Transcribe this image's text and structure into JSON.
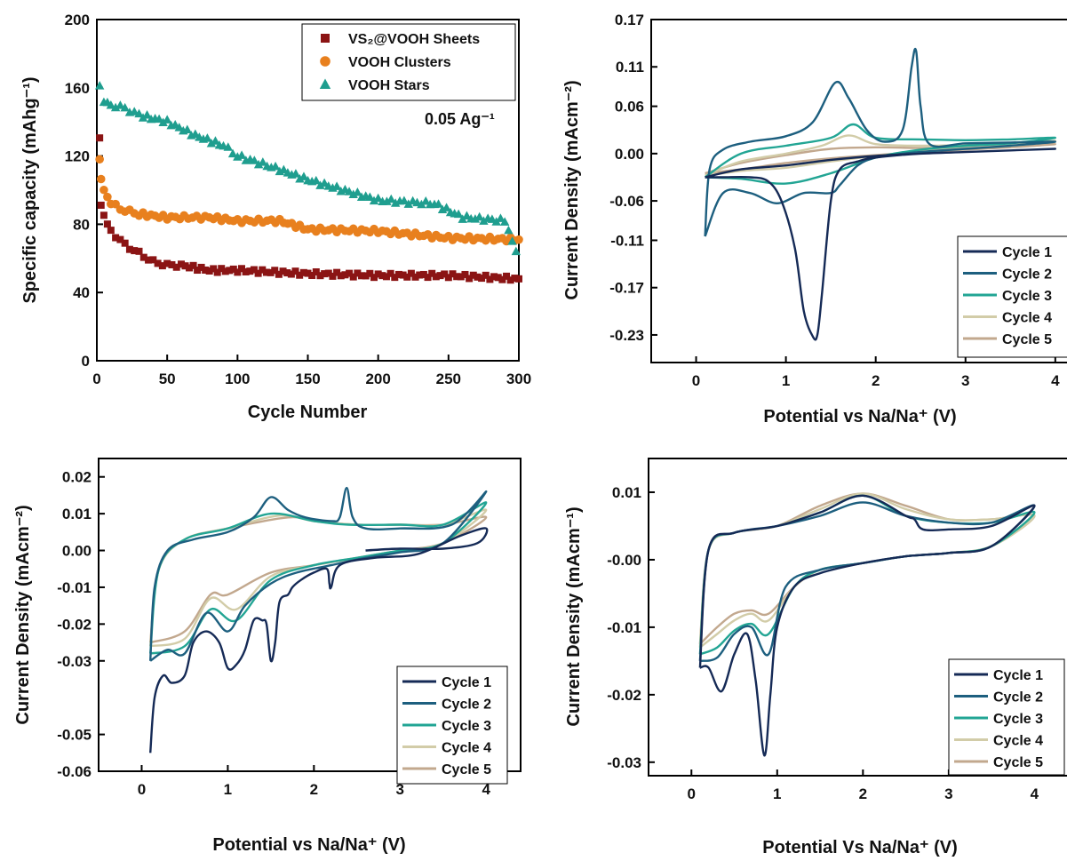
{
  "colors": {
    "sheets": "#8b1414",
    "clusters": "#e8801e",
    "stars": "#1f9e8f",
    "cycle1": "#152a56",
    "cycle2": "#1d5f7f",
    "cycle3": "#22a594",
    "cycle4": "#d2cca8",
    "cycle5": "#c2a88e"
  },
  "chart_data": [
    {
      "type": "scatter",
      "xlabel": "Cycle Number",
      "ylabel": "Specific capacity (mAhg⁻¹)",
      "xlim": [
        0,
        300
      ],
      "ylim": [
        0,
        200
      ],
      "xticks": [
        0,
        50,
        100,
        150,
        200,
        250,
        300
      ],
      "yticks": [
        0,
        40,
        80,
        120,
        160,
        200
      ],
      "annotation": "0.05 Ag⁻¹",
      "legend_position": "top-right",
      "series": [
        {
          "name": "VS₂@VOOH Sheets",
          "marker": "square",
          "x": [
            2,
            3,
            5,
            10,
            20,
            30,
            40,
            50,
            60,
            80,
            100,
            150,
            200,
            250,
            300
          ],
          "y": [
            130,
            92,
            85,
            76,
            68,
            63,
            58,
            56,
            56,
            53,
            53,
            51,
            50,
            50,
            48
          ]
        },
        {
          "name": "VOOH Clusters",
          "marker": "circle",
          "x": [
            2,
            3,
            5,
            10,
            20,
            30,
            50,
            80,
            100,
            130,
            150,
            200,
            250,
            300
          ],
          "y": [
            119,
            106,
            100,
            92,
            88,
            86,
            84,
            84,
            82,
            82,
            77,
            76,
            72,
            71
          ]
        },
        {
          "name": "VOOH Stars",
          "marker": "triangle",
          "x": [
            2,
            5,
            10,
            20,
            30,
            50,
            70,
            90,
            100,
            130,
            150,
            200,
            240,
            260,
            290,
            298
          ],
          "y": [
            160,
            152,
            150,
            148,
            144,
            140,
            132,
            126,
            120,
            112,
            106,
            94,
            92,
            84,
            82,
            64
          ]
        }
      ]
    },
    {
      "type": "line",
      "xlabel": "Potential vs Na/Na⁺ (V)",
      "ylabel": "Current Density (mAcm⁻²)",
      "xlim": [
        -0.5,
        4.15
      ],
      "ylim": [
        -0.265,
        0.17
      ],
      "xticks": [
        0,
        1,
        2,
        3,
        4
      ],
      "yticks": [
        0.17,
        0.11,
        0.06,
        0.0,
        -0.06,
        -0.11,
        -0.17,
        -0.23
      ],
      "ytick_labels": [
        "0.17",
        "0.11",
        "0.06",
        "0.00",
        "-0.06",
        "-0.11",
        "-0.17",
        "-0.23"
      ],
      "legend_position": "bottom-right",
      "series": [
        {
          "name": "Cycle 1",
          "x": [
            0.1,
            0.3,
            0.6,
            0.8,
            0.95,
            1.1,
            1.2,
            1.3,
            1.35,
            1.4,
            1.5,
            1.6,
            1.8,
            2.0,
            2.5,
            3.0,
            3.5,
            4.0,
            3.5,
            3.0,
            2.5,
            2.0,
            1.5,
            1.0,
            0.5,
            0.1
          ],
          "y": [
            -0.03,
            -0.03,
            -0.03,
            -0.035,
            -0.06,
            -0.12,
            -0.2,
            -0.232,
            -0.23,
            -0.18,
            -0.06,
            -0.02,
            -0.01,
            -0.005,
            0.0,
            0.002,
            0.004,
            0.006,
            0.004,
            0.002,
            0.0,
            -0.003,
            -0.008,
            -0.015,
            -0.02,
            -0.03
          ]
        },
        {
          "name": "Cycle 2",
          "x": [
            0.1,
            0.3,
            0.6,
            0.9,
            1.2,
            1.5,
            1.6,
            1.8,
            2.0,
            2.3,
            2.6,
            3.0,
            3.5,
            4.0,
            3.5,
            3.0,
            2.6,
            2.5,
            2.45,
            2.4,
            2.3,
            2.1,
            1.9,
            1.7,
            1.55,
            1.3,
            1.0,
            0.6,
            0.3,
            0.15,
            0.1
          ],
          "y": [
            -0.105,
            -0.05,
            -0.05,
            -0.063,
            -0.05,
            -0.05,
            -0.04,
            -0.015,
            -0.005,
            0.0,
            0.003,
            0.006,
            0.01,
            0.015,
            0.014,
            0.013,
            0.012,
            0.06,
            0.13,
            0.11,
            0.03,
            0.015,
            0.03,
            0.07,
            0.09,
            0.04,
            0.022,
            0.015,
            0.005,
            -0.02,
            -0.105
          ]
        },
        {
          "name": "Cycle 3",
          "x": [
            0.1,
            0.5,
            1.0,
            1.5,
            2.0,
            2.5,
            3.0,
            3.5,
            4.0,
            3.5,
            3.0,
            2.5,
            2.0,
            1.75,
            1.5,
            1.0,
            0.5,
            0.1
          ],
          "y": [
            -0.03,
            -0.032,
            -0.038,
            -0.025,
            -0.005,
            0.005,
            0.01,
            0.013,
            0.02,
            0.018,
            0.017,
            0.018,
            0.02,
            0.037,
            0.02,
            0.01,
            0.0,
            -0.03
          ]
        },
        {
          "name": "Cycle 4",
          "x": [
            0.1,
            0.5,
            1.0,
            1.5,
            2.0,
            2.5,
            3.0,
            3.5,
            4.0,
            3.5,
            3.0,
            2.5,
            2.0,
            1.7,
            1.4,
            1.0,
            0.5,
            0.1
          ],
          "y": [
            -0.028,
            -0.022,
            -0.018,
            -0.01,
            -0.003,
            0.003,
            0.007,
            0.01,
            0.016,
            0.013,
            0.011,
            0.01,
            0.012,
            0.023,
            0.01,
            0.0,
            -0.01,
            -0.028
          ]
        },
        {
          "name": "Cycle 5",
          "x": [
            0.1,
            0.5,
            1.0,
            1.5,
            2.0,
            2.5,
            3.0,
            3.5,
            4.0,
            3.5,
            3.0,
            2.5,
            2.0,
            1.5,
            1.0,
            0.5,
            0.1
          ],
          "y": [
            -0.025,
            -0.02,
            -0.012,
            -0.006,
            -0.002,
            0.002,
            0.005,
            0.008,
            0.012,
            0.01,
            0.008,
            0.007,
            0.008,
            0.006,
            -0.002,
            -0.012,
            -0.025
          ]
        }
      ]
    },
    {
      "type": "line",
      "xlabel": "Potential vs Na/Na⁺ (V)",
      "ylabel": "Current Density (mAcm⁻²)",
      "xlim": [
        -0.5,
        4.4
      ],
      "ylim": [
        -0.06,
        0.025
      ],
      "xticks": [
        0,
        1,
        2,
        3,
        4
      ],
      "yticks": [
        0.02,
        0.01,
        0.0,
        -0.01,
        -0.02,
        -0.03,
        -0.05,
        -0.06
      ],
      "ytick_labels": [
        "0.02",
        "0.01",
        "0.00",
        "-0.01",
        "-0.02",
        "-0.03",
        "-0.05",
        "-0.06"
      ],
      "legend_position": "bottom-right",
      "series": [
        {
          "name": "Cycle 1",
          "x": [
            2.6,
            3.0,
            3.5,
            3.9,
            4.0,
            3.7,
            3.2,
            2.7,
            2.3,
            2.2,
            2.18,
            2.15,
            2.0,
            1.85,
            1.75,
            1.7,
            1.6,
            1.55,
            1.5,
            1.45,
            1.4,
            1.3,
            1.2,
            1.1,
            1.0,
            0.9,
            0.75,
            0.6,
            0.5,
            0.35,
            0.25,
            0.15,
            0.1
          ],
          "y": [
            0.0,
            0.0005,
            0.0005,
            0.002,
            0.006,
            0.004,
            -0.001,
            -0.002,
            -0.004,
            -0.01,
            -0.009,
            -0.005,
            -0.006,
            -0.008,
            -0.01,
            -0.012,
            -0.014,
            -0.025,
            -0.03,
            -0.02,
            -0.019,
            -0.019,
            -0.027,
            -0.031,
            -0.032,
            -0.025,
            -0.022,
            -0.025,
            -0.034,
            -0.036,
            -0.034,
            -0.04,
            -0.055
          ]
        },
        {
          "name": "Cycle 2",
          "x": [
            0.1,
            0.3,
            0.5,
            0.75,
            1.0,
            1.2,
            1.5,
            1.8,
            2.2,
            2.6,
            3.0,
            3.5,
            4.0,
            3.6,
            3.0,
            2.6,
            2.45,
            2.38,
            2.3,
            2.2,
            1.9,
            1.7,
            1.5,
            1.3,
            1.0,
            0.6,
            0.3,
            0.15,
            0.1
          ],
          "y": [
            -0.03,
            -0.027,
            -0.028,
            -0.017,
            -0.022,
            -0.015,
            -0.009,
            -0.006,
            -0.004,
            -0.002,
            -0.0005,
            0.002,
            0.016,
            0.007,
            0.006,
            0.006,
            0.009,
            0.017,
            0.009,
            0.008,
            0.009,
            0.011,
            0.0145,
            0.009,
            0.005,
            0.003,
            0.0,
            -0.01,
            -0.03
          ]
        },
        {
          "name": "Cycle 3",
          "x": [
            0.1,
            0.5,
            0.8,
            1.1,
            1.5,
            2.0,
            2.5,
            3.0,
            3.5,
            4.0,
            3.5,
            3.0,
            2.4,
            2.0,
            1.5,
            1.0,
            0.5,
            0.2,
            0.1
          ],
          "y": [
            -0.028,
            -0.026,
            -0.016,
            -0.019,
            -0.008,
            -0.004,
            -0.002,
            0.0,
            0.002,
            0.013,
            0.007,
            0.007,
            0.007,
            0.008,
            0.01,
            0.006,
            0.003,
            -0.005,
            -0.028
          ]
        },
        {
          "name": "Cycle 4",
          "x": [
            0.1,
            0.5,
            0.8,
            1.1,
            1.5,
            2.0,
            2.5,
            3.0,
            3.5,
            4.0,
            3.5,
            3.0,
            2.5,
            2.0,
            1.6,
            1.0,
            0.5,
            0.2,
            0.1
          ],
          "y": [
            -0.026,
            -0.024,
            -0.013,
            -0.016,
            -0.007,
            -0.004,
            -0.002,
            0.0,
            0.002,
            0.011,
            0.007,
            0.007,
            0.007,
            0.008,
            0.0095,
            0.006,
            0.003,
            -0.005,
            -0.026
          ]
        },
        {
          "name": "Cycle 5",
          "x": [
            0.1,
            0.5,
            0.8,
            1.0,
            1.5,
            2.0,
            2.5,
            3.0,
            3.5,
            4.0,
            3.5,
            3.0,
            2.5,
            2.0,
            1.7,
            1.0,
            0.5,
            0.2,
            0.1
          ],
          "y": [
            -0.025,
            -0.022,
            -0.012,
            -0.012,
            -0.006,
            -0.004,
            -0.002,
            0.0,
            0.002,
            0.009,
            0.007,
            0.007,
            0.007,
            0.008,
            0.009,
            0.006,
            0.003,
            -0.005,
            -0.025
          ]
        }
      ]
    },
    {
      "type": "line",
      "xlabel": "Potential Vs Na/Na⁺ (V)",
      "ylabel": "Current Density (mAcm⁻¹)",
      "xlim": [
        -0.5,
        4.4
      ],
      "ylim": [
        -0.032,
        0.015
      ],
      "xticks": [
        0,
        1,
        2,
        3,
        4
      ],
      "yticks": [
        0.01,
        0.0,
        -0.01,
        -0.02,
        -0.03
      ],
      "ytick_labels": [
        "0.01",
        "-0.00",
        "-0.01",
        "-0.02",
        "-0.03"
      ],
      "legend_position": "bottom-right",
      "series": [
        {
          "name": "Cycle 1",
          "x": [
            0.1,
            0.2,
            0.35,
            0.5,
            0.65,
            0.75,
            0.85,
            0.92,
            1.0,
            1.2,
            1.5,
            2.0,
            2.5,
            3.0,
            3.5,
            4.0,
            3.5,
            3.0,
            2.7,
            2.6,
            2.5,
            2.0,
            1.5,
            1.0,
            0.5,
            0.2,
            0.1
          ],
          "y": [
            -0.016,
            -0.016,
            -0.0195,
            -0.014,
            -0.011,
            -0.018,
            -0.029,
            -0.02,
            -0.01,
            -0.004,
            -0.002,
            -0.0005,
            0.0005,
            0.001,
            0.002,
            0.008,
            0.005,
            0.0045,
            0.0045,
            0.006,
            0.0065,
            0.0095,
            0.007,
            0.005,
            0.004,
            0.0015,
            -0.016
          ]
        },
        {
          "name": "Cycle 2",
          "x": [
            0.1,
            0.3,
            0.5,
            0.7,
            0.9,
            1.1,
            1.5,
            2.0,
            2.5,
            3.0,
            3.5,
            4.0,
            3.5,
            3.0,
            2.5,
            2.0,
            1.5,
            1.0,
            0.5,
            0.2,
            0.1
          ],
          "y": [
            -0.015,
            -0.0145,
            -0.011,
            -0.01,
            -0.014,
            -0.004,
            -0.0015,
            -0.0005,
            0.0005,
            0.001,
            0.002,
            0.008,
            0.0055,
            0.0055,
            0.0065,
            0.0085,
            0.0065,
            0.005,
            0.004,
            0.0015,
            -0.015
          ]
        },
        {
          "name": "Cycle 3",
          "x": [
            0.1,
            0.3,
            0.5,
            0.7,
            0.9,
            1.2,
            1.5,
            2.0,
            2.5,
            3.0,
            3.5,
            4.0,
            3.5,
            3.0,
            2.5,
            2.0,
            1.5,
            1.0,
            0.5,
            0.2,
            0.1
          ],
          "y": [
            -0.014,
            -0.013,
            -0.0105,
            -0.0095,
            -0.011,
            -0.004,
            -0.0015,
            -0.0005,
            0.0005,
            0.001,
            0.002,
            0.007,
            0.0055,
            0.0055,
            0.0065,
            0.0095,
            0.007,
            0.005,
            0.004,
            0.0015,
            -0.014
          ]
        },
        {
          "name": "Cycle 4",
          "x": [
            0.1,
            0.3,
            0.5,
            0.7,
            0.9,
            1.2,
            1.5,
            2.0,
            2.5,
            3.0,
            3.5,
            4.0,
            3.5,
            3.0,
            2.5,
            2.0,
            1.5,
            1.0,
            0.5,
            0.2,
            0.1
          ],
          "y": [
            -0.013,
            -0.011,
            -0.009,
            -0.008,
            -0.009,
            -0.004,
            -0.0015,
            -0.0005,
            0.0005,
            0.001,
            0.002,
            0.0065,
            0.006,
            0.006,
            0.0075,
            0.0098,
            0.0075,
            0.005,
            0.004,
            0.0015,
            -0.013
          ]
        },
        {
          "name": "Cycle 5",
          "x": [
            0.1,
            0.3,
            0.5,
            0.7,
            0.9,
            1.2,
            1.5,
            2.0,
            2.5,
            3.0,
            3.5,
            4.0,
            3.5,
            3.0,
            2.5,
            2.0,
            1.5,
            1.0,
            0.5,
            0.2,
            0.1
          ],
          "y": [
            -0.0125,
            -0.01,
            -0.008,
            -0.0075,
            -0.008,
            -0.004,
            -0.0015,
            -0.0005,
            0.0005,
            0.001,
            0.002,
            0.0065,
            0.006,
            0.006,
            0.008,
            0.0098,
            0.008,
            0.005,
            0.004,
            0.0015,
            -0.0125
          ]
        }
      ]
    }
  ]
}
